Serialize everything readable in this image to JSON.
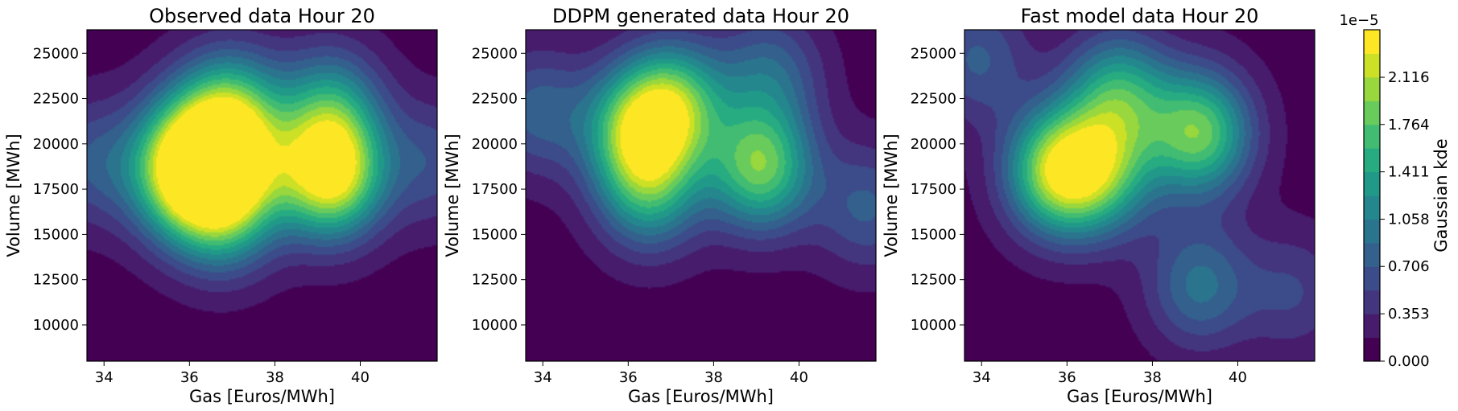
{
  "chart_data": [
    {
      "type": "heatmap",
      "subtype": "filled-contour (2D gaussian KDE)",
      "title": "Observed data Hour 20",
      "xlabel": "Gas [Euros/MWh]",
      "ylabel": "Volume [MWh]",
      "xlim": [
        33.6,
        41.8
      ],
      "ylim": [
        8000,
        26300
      ],
      "xticks": [
        34,
        36,
        38,
        40
      ],
      "yticks": [
        10000,
        12500,
        15000,
        17500,
        20000,
        22500,
        25000
      ],
      "peaks": [
        {
          "x": 39.3,
          "y": 18300,
          "density": 2.35e-05
        },
        {
          "x": 35.8,
          "y": 18000,
          "density": 1.5e-05
        },
        {
          "x": 36.8,
          "y": 16300,
          "density": 1.3e-05
        },
        {
          "x": 37.1,
          "y": 19000,
          "density": 1.45e-05
        },
        {
          "x": 37.0,
          "y": 22000,
          "density": 1.25e-05
        },
        {
          "x": 39.3,
          "y": 22000,
          "density": 1.1e-05
        },
        {
          "x": 36.0,
          "y": 20000,
          "density": 1.15e-05
        },
        {
          "x": 33.7,
          "y": 19000,
          "density": 6e-06
        },
        {
          "x": 41.7,
          "y": 19000,
          "density": 5.5e-06
        }
      ]
    },
    {
      "type": "heatmap",
      "subtype": "filled-contour (2D gaussian KDE)",
      "title": "DDPM generated data Hour 20",
      "xlabel": "Gas [Euros/MWh]",
      "ylabel": "Volume [MWh]",
      "xlim": [
        33.6,
        41.8
      ],
      "ylim": [
        8000,
        26300
      ],
      "xticks": [
        34,
        36,
        38,
        40
      ],
      "yticks": [
        10000,
        12500,
        15000,
        17500,
        20000,
        22500,
        25000
      ],
      "peaks": [
        {
          "x": 36.2,
          "y": 20800,
          "density": 1.55e-05
        },
        {
          "x": 37.1,
          "y": 22200,
          "density": 1.5e-05
        },
        {
          "x": 36.5,
          "y": 17500,
          "density": 1.25e-05
        },
        {
          "x": 39.1,
          "y": 18700,
          "density": 1.75e-05
        },
        {
          "x": 39.3,
          "y": 23800,
          "density": 7.5e-06
        },
        {
          "x": 33.9,
          "y": 21800,
          "density": 7e-06
        },
        {
          "x": 41.6,
          "y": 16500,
          "density": 6.5e-06
        }
      ]
    },
    {
      "type": "heatmap",
      "subtype": "filled-contour (2D gaussian KDE)",
      "title": "Fast model data Hour 20",
      "xlabel": "Gas [Euros/MWh]",
      "ylabel": "Volume [MWh]",
      "xlim": [
        33.6,
        41.8
      ],
      "ylim": [
        8000,
        26300
      ],
      "xticks": [
        34,
        36,
        38,
        40
      ],
      "yticks": [
        10000,
        12500,
        15000,
        17500,
        20000,
        22500,
        25000
      ],
      "peaks": [
        {
          "x": 35.8,
          "y": 18500,
          "density": 2e-05
        },
        {
          "x": 36.9,
          "y": 18400,
          "density": 1.2e-05
        },
        {
          "x": 37.2,
          "y": 22700,
          "density": 1.35e-05
        },
        {
          "x": 39.1,
          "y": 20600,
          "density": 1.75e-05
        },
        {
          "x": 39.1,
          "y": 12200,
          "density": 8.5e-06
        },
        {
          "x": 33.9,
          "y": 24700,
          "density": 6.5e-06
        },
        {
          "x": 41.3,
          "y": 11800,
          "density": 4.5e-06
        }
      ]
    }
  ],
  "colorbar": {
    "label": "Gaussian kde",
    "scale_label": "1e−5",
    "ticks": [
      "0.000",
      "0.353",
      "0.706",
      "1.058",
      "1.411",
      "1.764",
      "2.116"
    ],
    "tick_values": [
      0.0,
      0.353,
      0.706,
      1.058,
      1.411,
      1.764,
      2.116
    ],
    "range": [
      0.0,
      2.47
    ],
    "levels": 14,
    "colormap": "viridis"
  }
}
